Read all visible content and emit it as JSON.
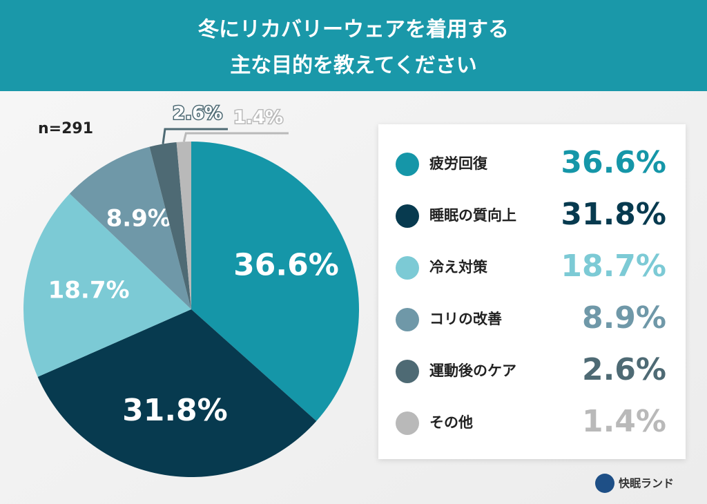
{
  "chart_data": {
    "type": "pie",
    "title": [
      "冬にリカバリーウェアを着用する",
      "主な目的を教えてください"
    ],
    "annotation": "n=291",
    "brand": "快眠ランド",
    "categories": [
      "疲労回復",
      "睡眠の質向上",
      "冷え対策",
      "コリの改善",
      "運動後のケア",
      "その他"
    ],
    "values": [
      36.6,
      31.8,
      18.7,
      8.9,
      2.6,
      1.4
    ],
    "value_labels": [
      "36.6%",
      "31.8%",
      "18.7%",
      "8.9%",
      "2.6%",
      "1.4%"
    ],
    "colors": [
      "#1596a8",
      "#073a4f",
      "#7ccad5",
      "#6f98a8",
      "#4e6a74",
      "#b9b9b9"
    ],
    "legend": "right"
  }
}
